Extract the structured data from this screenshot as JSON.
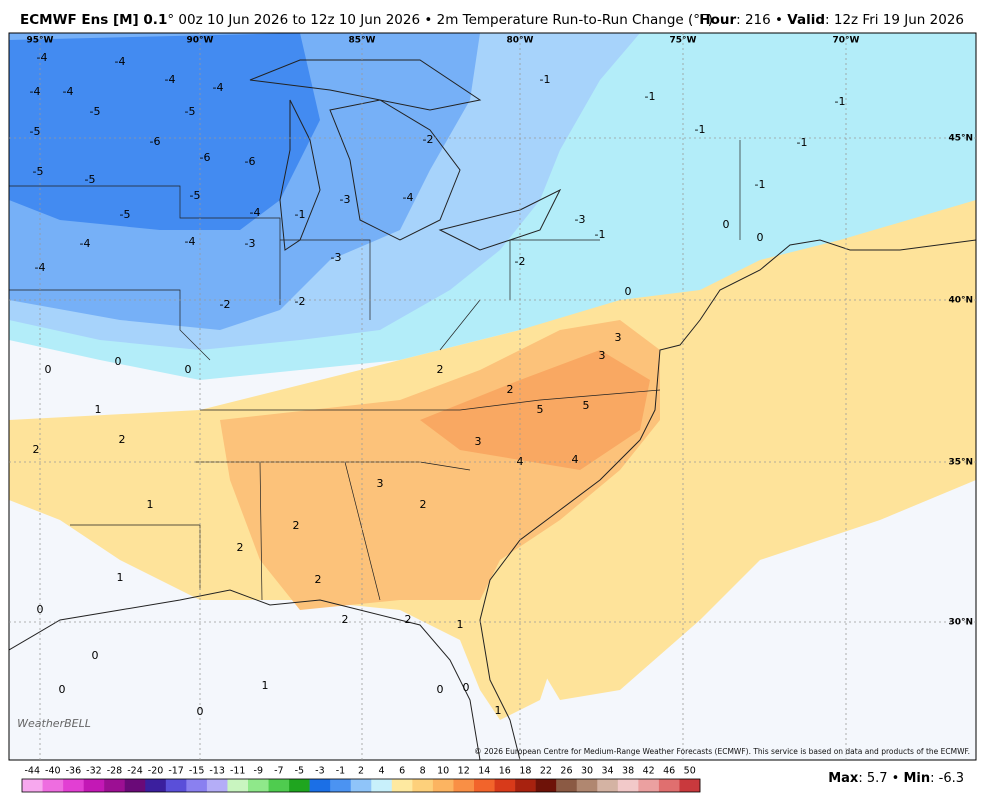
{
  "header": {
    "model": "ECMWF Ens [M] 0.1",
    "description": "° 00z 10 Jun 2026 to 12z 10 Jun 2026 • 2m Temperature Run-to-Run Change (°F)",
    "hour_label": "Hour",
    "hour_value": ": 216 • ",
    "valid_label": "Valid",
    "valid_value": ": 12z Fri 19 Jun 2026"
  },
  "map": {
    "lon_labels": [
      "95°W",
      "90°W",
      "85°W",
      "80°W",
      "75°W",
      "70°W"
    ],
    "lat_labels": [
      "45°N",
      "40°N",
      "35°N",
      "30°N"
    ],
    "labels": [
      -4,
      -4,
      -4,
      -4,
      -4,
      -4,
      -5,
      -5,
      -5,
      -6,
      -6,
      -6,
      -5,
      -5,
      -5,
      -4,
      -5,
      -4,
      -4,
      -4,
      -3,
      -2,
      -2,
      -3,
      -3,
      -1,
      -4,
      -2,
      -1,
      -1,
      -1,
      -1,
      -1,
      -1,
      -3,
      -2,
      -1,
      0,
      0,
      0,
      0,
      0,
      0,
      1,
      2,
      2,
      1,
      2,
      2,
      3,
      2,
      3,
      5,
      5,
      4,
      4,
      3,
      3,
      2,
      2,
      2,
      2,
      2,
      1,
      0,
      0,
      0,
      0,
      0,
      1,
      1,
      0,
      1
    ],
    "logo": "WeatherBELL",
    "copyright": "© 2026 European Centre for Medium-Range Weather Forecasts (ECMWF). This service is based on data and products of the ECMWF."
  },
  "colorbar": {
    "levels": [
      -44,
      -40,
      -36,
      -32,
      -28,
      -24,
      -20,
      -17,
      -15,
      -13,
      -11,
      -9,
      -7,
      -5,
      -3,
      -1,
      2,
      4,
      6,
      8,
      10,
      12,
      14,
      16,
      18,
      22,
      26,
      30,
      34,
      38,
      42,
      46,
      50
    ],
    "colors": [
      "#f7a8ee",
      "#ee6de0",
      "#e23fd3",
      "#c318b5",
      "#9c0f93",
      "#6a0a78",
      "#3b1f9e",
      "#5a4fd9",
      "#8a80f0",
      "#b4adf7",
      "#c9f5c0",
      "#8fe88a",
      "#4fcc4f",
      "#1fa51f",
      "#1b6fe6",
      "#4b93f2",
      "#8fc4f9",
      "#c8f0fb",
      "#fee9a0",
      "#fdd07b",
      "#fcb461",
      "#f98f45",
      "#f2642b",
      "#d83a1a",
      "#a8220f",
      "#6e1208",
      "#8b5a44",
      "#b08770",
      "#d4b3a3",
      "#f2c9c9",
      "#eba0a0",
      "#e06f6f",
      "#c9393d"
    ]
  },
  "footer": {
    "max_label": "Max",
    "max_value": ": 5.7 • ",
    "min_label": "Min",
    "min_value": ": -6.3"
  }
}
